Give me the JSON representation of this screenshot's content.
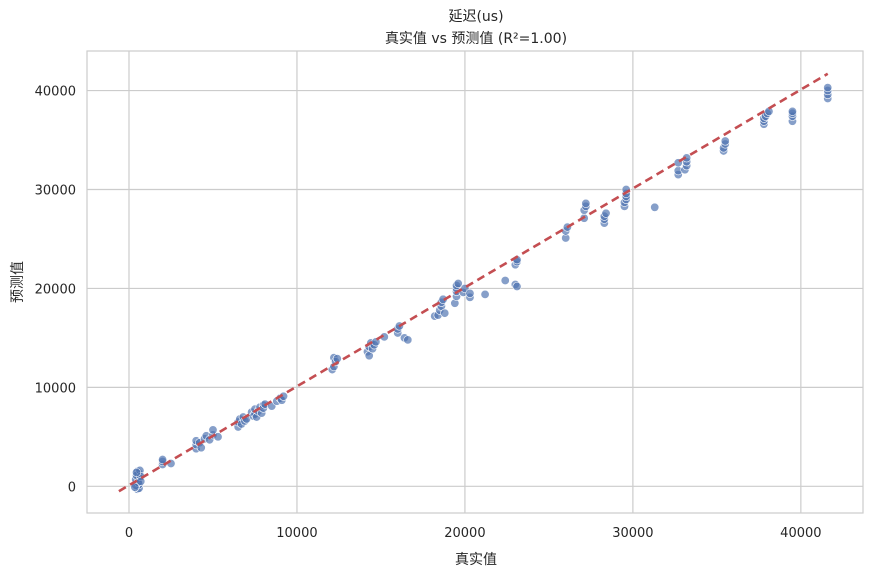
{
  "chart_data": {
    "type": "scatter",
    "title": "延迟(us)",
    "subtitle": "真实值 vs 预测值 (R²=1.00)",
    "xlabel": "真实值",
    "ylabel": "预测值",
    "xlim": [
      -2500,
      43700
    ],
    "ylim": [
      -2700,
      44000
    ],
    "x_ticks": [
      0,
      10000,
      20000,
      30000,
      40000
    ],
    "x_tick_labels": [
      "0",
      "10000",
      "20000",
      "30000",
      "40000"
    ],
    "y_ticks": [
      0,
      10000,
      20000,
      30000,
      40000
    ],
    "y_tick_labels": [
      "0",
      "10000",
      "20000",
      "30000",
      "40000"
    ],
    "grid": true,
    "point_color": "#4c72b0",
    "reference_line": {
      "style": "dashed",
      "color": "#c44e52",
      "from": [
        -600,
        -500
      ],
      "to": [
        41600,
        41700
      ]
    },
    "points": [
      [
        500,
        -300
      ],
      [
        500,
        0
      ],
      [
        500,
        300
      ],
      [
        500,
        600
      ],
      [
        500,
        900
      ],
      [
        500,
        1200
      ],
      [
        500,
        1500
      ],
      [
        600,
        -200
      ],
      [
        600,
        200
      ],
      [
        600,
        800
      ],
      [
        600,
        1300
      ],
      [
        400,
        100
      ],
      [
        400,
        700
      ],
      [
        450,
        1100
      ],
      [
        550,
        400
      ],
      [
        650,
        1600
      ],
      [
        700,
        1000
      ],
      [
        700,
        500
      ],
      [
        350,
        -100
      ],
      [
        450,
        1400
      ],
      [
        2000,
        2200
      ],
      [
        2000,
        2500
      ],
      [
        2000,
        2700
      ],
      [
        2500,
        2300
      ],
      [
        4000,
        3800
      ],
      [
        4000,
        4200
      ],
      [
        4000,
        4600
      ],
      [
        4200,
        4400
      ],
      [
        4300,
        3900
      ],
      [
        4500,
        4800
      ],
      [
        4600,
        5100
      ],
      [
        4800,
        4700
      ],
      [
        5000,
        5200
      ],
      [
        5000,
        5700
      ],
      [
        5300,
        5000
      ],
      [
        6500,
        6000
      ],
      [
        6500,
        6500
      ],
      [
        6600,
        6800
      ],
      [
        6700,
        6300
      ],
      [
        6800,
        7000
      ],
      [
        6900,
        6600
      ],
      [
        7000,
        6800
      ],
      [
        7300,
        7500
      ],
      [
        7400,
        7100
      ],
      [
        7500,
        7300
      ],
      [
        7500,
        7800
      ],
      [
        7600,
        7000
      ],
      [
        7700,
        7600
      ],
      [
        7800,
        8000
      ],
      [
        7900,
        7400
      ],
      [
        8000,
        8200
      ],
      [
        8000,
        7900
      ],
      [
        8100,
        8300
      ],
      [
        8500,
        8100
      ],
      [
        8800,
        8600
      ],
      [
        9000,
        8900
      ],
      [
        9100,
        8700
      ],
      [
        9200,
        9100
      ],
      [
        12100,
        11800
      ],
      [
        12200,
        12100
      ],
      [
        12200,
        13000
      ],
      [
        12300,
        12600
      ],
      [
        12400,
        12900
      ],
      [
        14200,
        13600
      ],
      [
        14300,
        14100
      ],
      [
        14300,
        13200
      ],
      [
        14400,
        14500
      ],
      [
        14500,
        13900
      ],
      [
        14600,
        14300
      ],
      [
        14700,
        14600
      ],
      [
        15200,
        15100
      ],
      [
        16000,
        15500
      ],
      [
        16000,
        15900
      ],
      [
        16100,
        16200
      ],
      [
        16400,
        15000
      ],
      [
        16600,
        14800
      ],
      [
        18200,
        17200
      ],
      [
        18400,
        17300
      ],
      [
        18500,
        17800
      ],
      [
        18600,
        18200
      ],
      [
        18600,
        18600
      ],
      [
        18700,
        18900
      ],
      [
        18800,
        17500
      ],
      [
        19400,
        18500
      ],
      [
        19500,
        19200
      ],
      [
        19500,
        19700
      ],
      [
        19500,
        20000
      ],
      [
        19500,
        20300
      ],
      [
        19600,
        20500
      ],
      [
        19900,
        19600
      ],
      [
        20000,
        20000
      ],
      [
        20300,
        19100
      ],
      [
        20300,
        19500
      ],
      [
        21200,
        19400
      ],
      [
        22400,
        20800
      ],
      [
        23000,
        20400
      ],
      [
        23100,
        20200
      ],
      [
        23000,
        22400
      ],
      [
        23100,
        22700
      ],
      [
        23100,
        22900
      ],
      [
        26000,
        25100
      ],
      [
        26000,
        25800
      ],
      [
        26100,
        26200
      ],
      [
        27100,
        27100
      ],
      [
        27100,
        27900
      ],
      [
        27200,
        28300
      ],
      [
        27200,
        28600
      ],
      [
        28300,
        26600
      ],
      [
        28300,
        27000
      ],
      [
        28300,
        27300
      ],
      [
        28400,
        27600
      ],
      [
        29500,
        28300
      ],
      [
        29500,
        28700
      ],
      [
        29600,
        29000
      ],
      [
        29600,
        29300
      ],
      [
        29600,
        29600
      ],
      [
        29600,
        30000
      ],
      [
        31300,
        28200
      ],
      [
        32700,
        31500
      ],
      [
        32700,
        31900
      ],
      [
        32700,
        32700
      ],
      [
        33100,
        32000
      ],
      [
        33200,
        32400
      ],
      [
        33200,
        32800
      ],
      [
        33200,
        33200
      ],
      [
        35400,
        33900
      ],
      [
        35400,
        34200
      ],
      [
        35500,
        34600
      ],
      [
        35500,
        34900
      ],
      [
        37800,
        36600
      ],
      [
        37800,
        36900
      ],
      [
        37800,
        37200
      ],
      [
        37900,
        37400
      ],
      [
        38000,
        37700
      ],
      [
        38100,
        37900
      ],
      [
        39500,
        36900
      ],
      [
        39500,
        37400
      ],
      [
        39500,
        37700
      ],
      [
        39500,
        37900
      ],
      [
        41600,
        39200
      ],
      [
        41600,
        39600
      ],
      [
        41600,
        40000
      ],
      [
        41600,
        40300
      ]
    ]
  }
}
